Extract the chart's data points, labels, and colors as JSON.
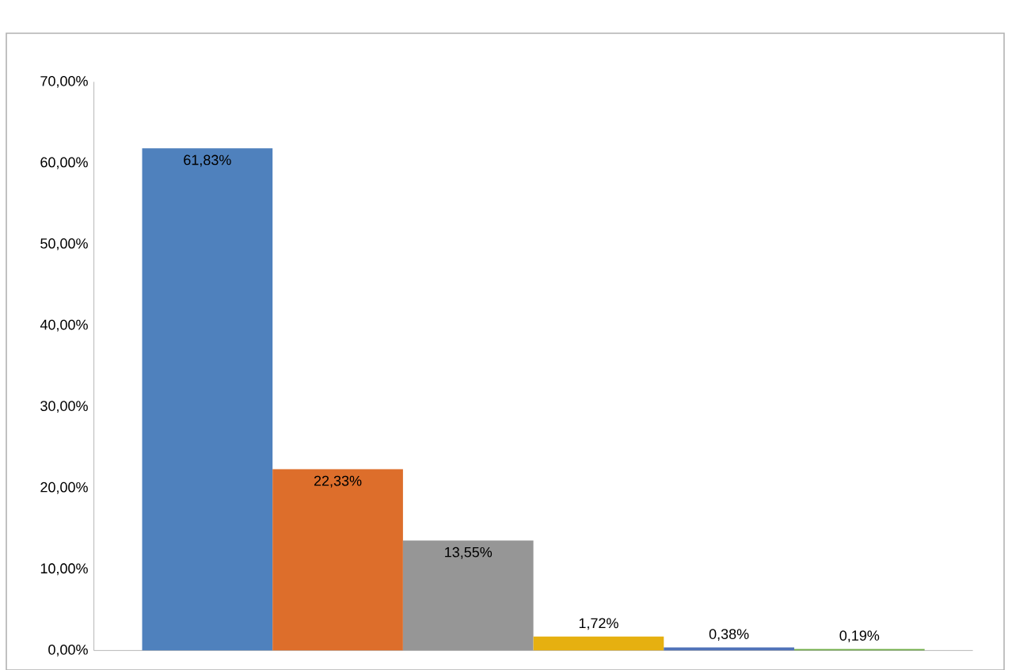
{
  "chart_data": {
    "type": "bar",
    "categories": [
      null,
      null,
      null,
      null,
      null,
      null
    ],
    "values": [
      61.83,
      22.33,
      13.55,
      1.72,
      0.38,
      0.19
    ],
    "colors": [
      "#4f81bd",
      "#dd6e2b",
      "#969696",
      "#e6b010",
      "#4f72b8",
      "#70ad47"
    ],
    "value_labels": [
      "61,83%",
      "22,33%",
      "13,55%",
      "1,72%",
      "0,38%",
      "0,19%"
    ],
    "ylim": [
      0,
      70
    ],
    "yticks": [
      {
        "value": 0,
        "label": "0,00%"
      },
      {
        "value": 10,
        "label": "10,00%"
      },
      {
        "value": 20,
        "label": "20,00%"
      },
      {
        "value": 30,
        "label": "30,00%"
      },
      {
        "value": 40,
        "label": "40,00%"
      },
      {
        "value": 50,
        "label": "50,00%"
      },
      {
        "value": 60,
        "label": "60,00%"
      },
      {
        "value": 70,
        "label": "70,00%"
      }
    ],
    "tick_labels": "y",
    "grid": false
  }
}
